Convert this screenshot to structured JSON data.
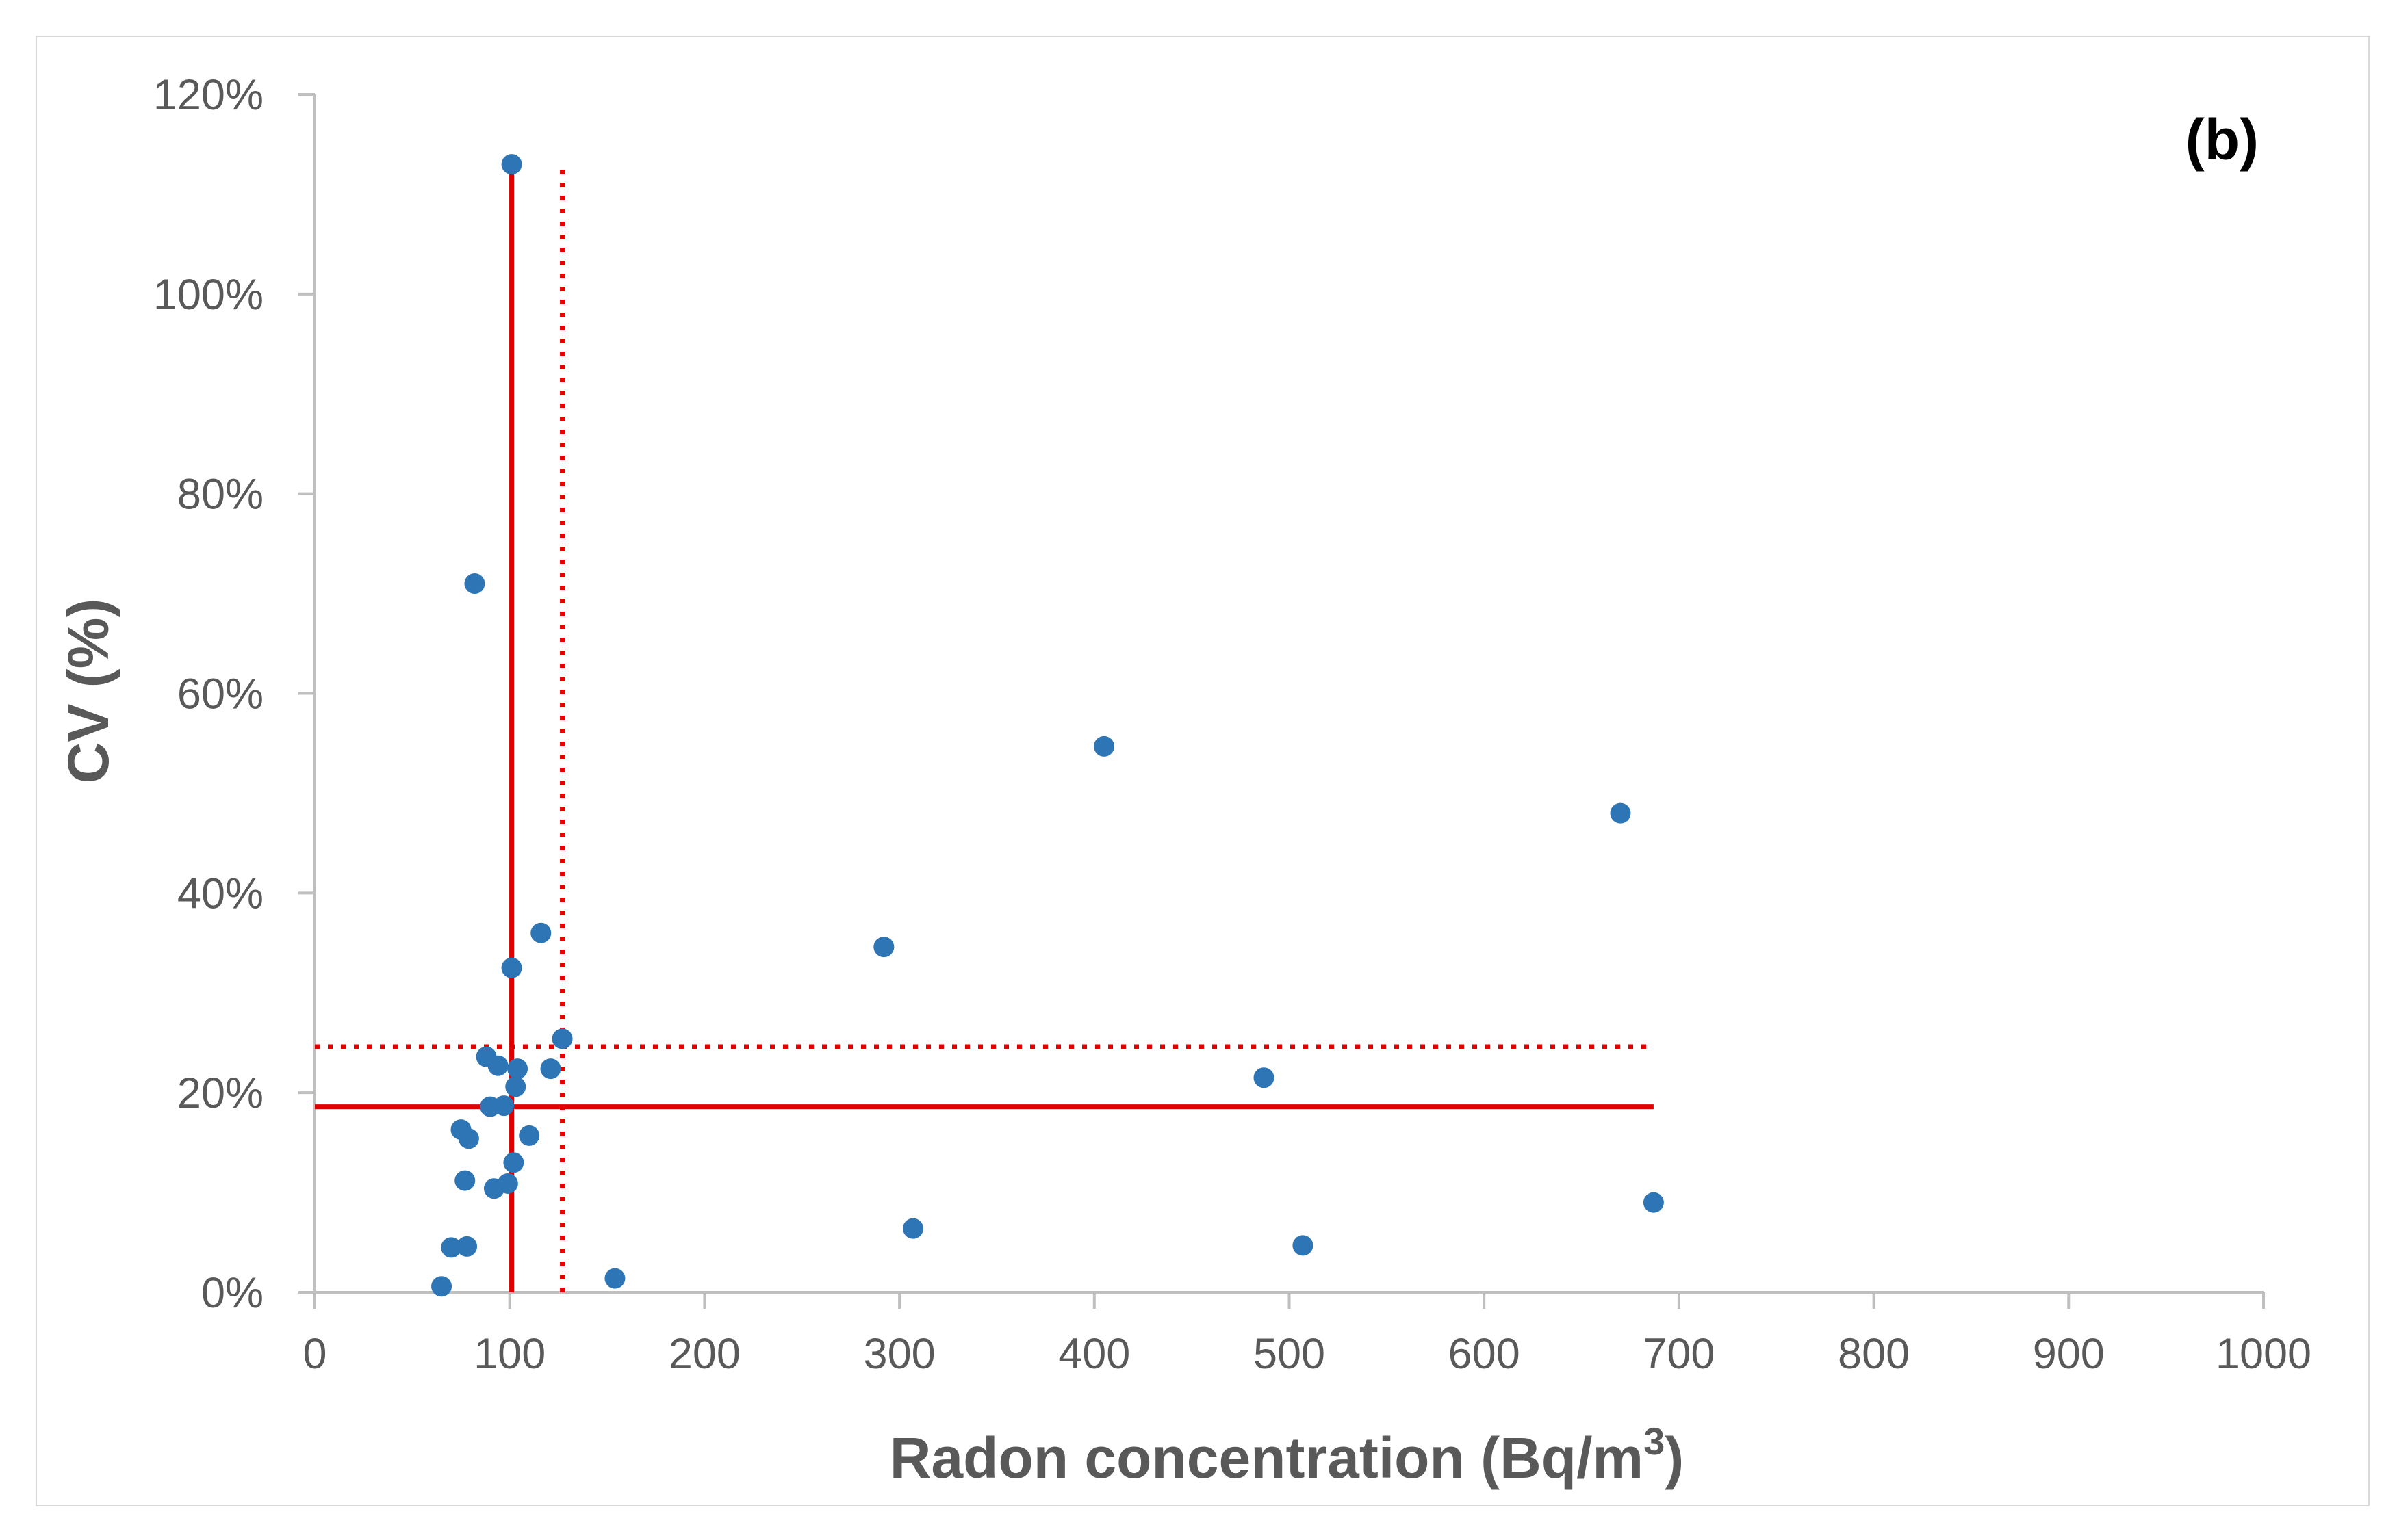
{
  "chart_data": {
    "type": "scatter",
    "panel_label": "(b)",
    "xlabel": "Radon concentration (Bq/m",
    "xlabel_sup": "3",
    "xlabel_end": ")",
    "ylabel": "CV (%)",
    "xlim": [
      0,
      1000
    ],
    "ylim": [
      0,
      120
    ],
    "x_ticks": [
      0,
      100,
      200,
      300,
      400,
      500,
      600,
      700,
      800,
      900,
      1000
    ],
    "x_tick_labels": [
      "0",
      "100",
      "200",
      "300",
      "400",
      "500",
      "600",
      "700",
      "800",
      "900",
      "1000"
    ],
    "y_ticks": [
      0,
      20,
      40,
      60,
      80,
      100,
      120
    ],
    "y_tick_labels": [
      "0%",
      "20%",
      "40%",
      "60%",
      "80%",
      "100%",
      "120%"
    ],
    "grid": false,
    "point_color": "#2e75b6",
    "line_color": "#e00000",
    "points": [
      {
        "x": 101,
        "y": 113
      },
      {
        "x": 82,
        "y": 71
      },
      {
        "x": 405,
        "y": 54.7
      },
      {
        "x": 670,
        "y": 48
      },
      {
        "x": 116,
        "y": 36
      },
      {
        "x": 292,
        "y": 34.6
      },
      {
        "x": 101,
        "y": 32.5
      },
      {
        "x": 127,
        "y": 25.4
      },
      {
        "x": 88,
        "y": 23.6
      },
      {
        "x": 94,
        "y": 22.7
      },
      {
        "x": 104,
        "y": 22.4
      },
      {
        "x": 121,
        "y": 22.4
      },
      {
        "x": 487,
        "y": 21.5
      },
      {
        "x": 103,
        "y": 20.6
      },
      {
        "x": 90,
        "y": 18.6
      },
      {
        "x": 97,
        "y": 18.7
      },
      {
        "x": 75,
        "y": 16.3
      },
      {
        "x": 79,
        "y": 15.4
      },
      {
        "x": 110,
        "y": 15.7
      },
      {
        "x": 102,
        "y": 13
      },
      {
        "x": 77,
        "y": 11.2
      },
      {
        "x": 92,
        "y": 10.4
      },
      {
        "x": 99,
        "y": 10.9
      },
      {
        "x": 687,
        "y": 9
      },
      {
        "x": 307,
        "y": 6.4
      },
      {
        "x": 70,
        "y": 4.5
      },
      {
        "x": 78,
        "y": 4.6
      },
      {
        "x": 507,
        "y": 4.7
      },
      {
        "x": 154,
        "y": 1.4
      },
      {
        "x": 65,
        "y": 0.6
      }
    ],
    "reference_lines": [
      {
        "orientation": "vertical",
        "x": 101,
        "y_range": [
          0,
          113
        ],
        "style": "solid"
      },
      {
        "orientation": "vertical",
        "x": 127,
        "y_range": [
          0,
          113
        ],
        "style": "dotted"
      },
      {
        "orientation": "horizontal",
        "y": 18.6,
        "x_range": [
          0,
          687
        ],
        "style": "solid"
      },
      {
        "orientation": "horizontal",
        "y": 24.6,
        "x_range": [
          0,
          687
        ],
        "style": "dotted"
      }
    ]
  }
}
